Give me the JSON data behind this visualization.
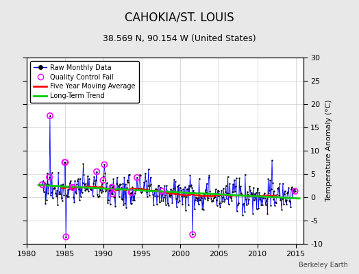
{
  "title": "CAHOKIA/ST. LOUIS",
  "subtitle": "38.569 N, 90.154 W (United States)",
  "ylabel_right": "Temperature Anomaly (°C)",
  "watermark": "Berkeley Earth",
  "xlim": [
    1980,
    2016
  ],
  "ylim": [
    -10,
    30
  ],
  "yticks": [
    -10,
    -5,
    0,
    5,
    10,
    15,
    20,
    25,
    30
  ],
  "xticks": [
    1980,
    1985,
    1990,
    1995,
    2000,
    2005,
    2010,
    2015
  ],
  "bg_color": "#e8e8e8",
  "plot_bg_color": "#ffffff",
  "raw_line_color": "#0000ff",
  "raw_dot_color": "#000000",
  "qc_fail_color": "#ff00ff",
  "moving_avg_color": "#ff0000",
  "trend_color": "#00cc00",
  "trend_x": [
    1981.5,
    2015.5
  ],
  "trend_y": [
    2.6,
    -0.25
  ],
  "title_fontsize": 12,
  "subtitle_fontsize": 9,
  "tick_fontsize": 8,
  "ylabel_fontsize": 8
}
